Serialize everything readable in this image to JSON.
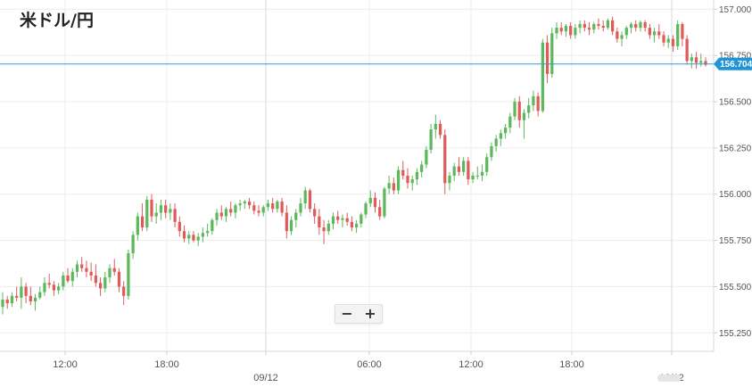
{
  "chart_data": {
    "type": "candlestick",
    "title": "米ドル/円",
    "ylim": [
      155.15,
      157.05
    ],
    "yticks": [
      "157.000",
      "156.750",
      "156.500",
      "156.250",
      "156.000",
      "155.750",
      "155.500",
      "155.250"
    ],
    "ytick_values": [
      157.0,
      156.75,
      156.5,
      156.25,
      156.0,
      155.75,
      155.5,
      155.25
    ],
    "xticks": [
      "12:00",
      "18:00",
      "09/12",
      "06:00",
      "12:00",
      "18:00",
      "10/12"
    ],
    "date_separators": [
      "09/12",
      "10/12"
    ],
    "current_price": "156.704",
    "current_price_value": 156.704,
    "colors": {
      "up": "#5cb85c",
      "down": "#e05a5a",
      "price_line": "#2a9fd6",
      "badge": "#1f95d8"
    },
    "candles": [
      [
        155.39,
        155.47,
        155.35,
        155.43
      ],
      [
        155.43,
        155.45,
        155.38,
        155.41
      ],
      [
        155.41,
        155.47,
        155.39,
        155.45
      ],
      [
        155.45,
        155.5,
        155.42,
        155.44
      ],
      [
        155.44,
        155.55,
        155.38,
        155.5
      ],
      [
        155.5,
        155.52,
        155.41,
        155.45
      ],
      [
        155.45,
        155.5,
        155.4,
        155.42
      ],
      [
        155.42,
        155.46,
        155.37,
        155.44
      ],
      [
        155.44,
        155.5,
        155.43,
        155.47
      ],
      [
        155.47,
        155.55,
        155.45,
        155.52
      ],
      [
        155.52,
        155.57,
        155.49,
        155.51
      ],
      [
        155.51,
        155.53,
        155.45,
        155.48
      ],
      [
        155.48,
        155.52,
        155.46,
        155.5
      ],
      [
        155.5,
        155.58,
        155.48,
        155.56
      ],
      [
        155.56,
        155.6,
        155.52,
        155.53
      ],
      [
        155.53,
        155.6,
        155.5,
        155.58
      ],
      [
        155.58,
        155.64,
        155.55,
        155.62
      ],
      [
        155.62,
        155.66,
        155.58,
        155.6
      ],
      [
        155.6,
        155.64,
        155.55,
        155.58
      ],
      [
        155.58,
        155.63,
        155.53,
        155.56
      ],
      [
        155.56,
        155.62,
        155.5,
        155.52
      ],
      [
        155.52,
        155.55,
        155.45,
        155.49
      ],
      [
        155.49,
        155.58,
        155.47,
        155.55
      ],
      [
        155.55,
        155.62,
        155.52,
        155.6
      ],
      [
        155.6,
        155.65,
        155.56,
        155.58
      ],
      [
        155.58,
        155.6,
        155.47,
        155.5
      ],
      [
        155.5,
        155.53,
        155.4,
        155.45
      ],
      [
        155.45,
        155.7,
        155.43,
        155.68
      ],
      [
        155.68,
        155.8,
        155.65,
        155.78
      ],
      [
        155.78,
        155.9,
        155.75,
        155.88
      ],
      [
        155.88,
        155.95,
        155.8,
        155.82
      ],
      [
        155.82,
        155.99,
        155.8,
        155.97
      ],
      [
        155.97,
        156.0,
        155.85,
        155.88
      ],
      [
        155.88,
        155.95,
        155.84,
        155.9
      ],
      [
        155.9,
        155.97,
        155.86,
        155.94
      ],
      [
        155.94,
        155.97,
        155.87,
        155.9
      ],
      [
        155.9,
        155.95,
        155.86,
        155.92
      ],
      [
        155.92,
        155.95,
        155.82,
        155.85
      ],
      [
        155.85,
        155.88,
        155.77,
        155.8
      ],
      [
        155.8,
        155.83,
        155.74,
        155.76
      ],
      [
        155.76,
        155.8,
        155.73,
        155.78
      ],
      [
        155.78,
        155.8,
        155.74,
        155.75
      ],
      [
        155.75,
        155.79,
        155.72,
        155.77
      ],
      [
        155.77,
        155.82,
        155.74,
        155.79
      ],
      [
        155.79,
        155.84,
        155.77,
        155.8
      ],
      [
        155.8,
        155.87,
        155.78,
        155.86
      ],
      [
        155.86,
        155.92,
        155.83,
        155.9
      ],
      [
        155.9,
        155.94,
        155.86,
        155.88
      ],
      [
        155.88,
        155.93,
        155.85,
        155.92
      ],
      [
        155.92,
        155.96,
        155.88,
        155.9
      ],
      [
        155.9,
        155.95,
        155.87,
        155.94
      ],
      [
        155.94,
        155.97,
        155.91,
        155.95
      ],
      [
        155.95,
        155.97,
        155.92,
        155.96
      ],
      [
        155.96,
        155.98,
        155.92,
        155.94
      ],
      [
        155.94,
        155.96,
        155.89,
        155.91
      ],
      [
        155.91,
        155.94,
        155.88,
        155.9
      ],
      [
        155.9,
        155.94,
        155.88,
        155.93
      ],
      [
        155.93,
        155.97,
        155.91,
        155.95
      ],
      [
        155.95,
        155.98,
        155.9,
        155.92
      ],
      [
        155.92,
        155.97,
        155.9,
        155.96
      ],
      [
        155.96,
        155.98,
        155.88,
        155.9
      ],
      [
        155.9,
        155.94,
        155.76,
        155.8
      ],
      [
        155.8,
        155.88,
        155.78,
        155.86
      ],
      [
        155.86,
        155.92,
        155.82,
        155.9
      ],
      [
        155.9,
        155.98,
        155.88,
        155.95
      ],
      [
        155.95,
        156.04,
        155.92,
        156.02
      ],
      [
        156.02,
        156.03,
        155.9,
        155.92
      ],
      [
        155.92,
        155.95,
        155.84,
        155.88
      ],
      [
        155.88,
        155.92,
        155.78,
        155.82
      ],
      [
        155.82,
        155.86,
        155.73,
        155.8
      ],
      [
        155.8,
        155.86,
        155.78,
        155.84
      ],
      [
        155.84,
        155.9,
        155.81,
        155.88
      ],
      [
        155.88,
        155.91,
        155.84,
        155.86
      ],
      [
        155.86,
        155.89,
        155.82,
        155.87
      ],
      [
        155.87,
        155.9,
        155.83,
        155.85
      ],
      [
        155.85,
        155.88,
        155.8,
        155.82
      ],
      [
        155.82,
        155.86,
        155.79,
        155.84
      ],
      [
        155.84,
        155.9,
        155.82,
        155.89
      ],
      [
        155.89,
        155.96,
        155.87,
        155.95
      ],
      [
        155.95,
        156.02,
        155.93,
        155.98
      ],
      [
        155.98,
        156.01,
        155.9,
        155.93
      ],
      [
        155.93,
        155.97,
        155.86,
        155.88
      ],
      [
        155.88,
        156.04,
        155.87,
        156.03
      ],
      [
        156.03,
        156.1,
        156.0,
        156.06
      ],
      [
        156.06,
        156.09,
        156.0,
        156.02
      ],
      [
        156.02,
        156.15,
        156.0,
        156.13
      ],
      [
        156.13,
        156.18,
        156.08,
        156.1
      ],
      [
        156.1,
        156.14,
        156.03,
        156.06
      ],
      [
        156.06,
        156.1,
        156.02,
        156.08
      ],
      [
        156.08,
        156.14,
        156.05,
        156.12
      ],
      [
        156.12,
        156.18,
        156.09,
        156.16
      ],
      [
        156.16,
        156.26,
        156.14,
        156.24
      ],
      [
        156.24,
        156.38,
        156.22,
        156.35
      ],
      [
        156.35,
        156.43,
        156.3,
        156.38
      ],
      [
        156.38,
        156.4,
        156.3,
        156.32
      ],
      [
        156.32,
        156.35,
        156.0,
        156.06
      ],
      [
        156.06,
        156.12,
        156.02,
        156.1
      ],
      [
        156.1,
        156.17,
        156.07,
        156.15
      ],
      [
        156.15,
        156.2,
        156.1,
        156.12
      ],
      [
        156.12,
        156.2,
        156.1,
        156.18
      ],
      [
        156.18,
        156.2,
        156.05,
        156.08
      ],
      [
        156.08,
        156.12,
        156.06,
        156.1
      ],
      [
        156.1,
        156.15,
        156.08,
        156.1
      ],
      [
        156.1,
        156.16,
        156.07,
        156.12
      ],
      [
        156.12,
        156.22,
        156.1,
        156.2
      ],
      [
        156.2,
        156.28,
        156.18,
        156.26
      ],
      [
        156.26,
        156.32,
        156.23,
        156.3
      ],
      [
        156.3,
        156.35,
        156.26,
        156.33
      ],
      [
        156.33,
        156.38,
        156.3,
        156.36
      ],
      [
        156.36,
        156.44,
        156.33,
        156.42
      ],
      [
        156.42,
        156.52,
        156.4,
        156.5
      ],
      [
        156.5,
        156.53,
        156.36,
        156.4
      ],
      [
        156.4,
        156.46,
        156.3,
        156.44
      ],
      [
        156.44,
        156.52,
        156.41,
        156.48
      ],
      [
        156.48,
        156.56,
        156.45,
        156.53
      ],
      [
        156.53,
        156.55,
        156.42,
        156.45
      ],
      [
        156.45,
        156.84,
        156.44,
        156.82
      ],
      [
        156.82,
        156.86,
        156.6,
        156.65
      ],
      [
        156.65,
        156.9,
        156.63,
        156.87
      ],
      [
        156.87,
        156.93,
        156.84,
        156.9
      ],
      [
        156.9,
        156.93,
        156.86,
        156.88
      ],
      [
        156.88,
        156.92,
        156.85,
        156.91
      ],
      [
        156.91,
        156.93,
        156.84,
        156.86
      ],
      [
        156.86,
        156.92,
        156.84,
        156.9
      ],
      [
        156.9,
        156.94,
        156.87,
        156.92
      ],
      [
        156.92,
        156.94,
        156.88,
        156.9
      ],
      [
        156.9,
        156.93,
        156.86,
        156.89
      ],
      [
        156.89,
        156.93,
        156.87,
        156.92
      ],
      [
        156.92,
        156.95,
        156.89,
        156.91
      ],
      [
        156.91,
        156.94,
        156.88,
        156.9
      ],
      [
        156.9,
        156.95,
        156.89,
        156.94
      ],
      [
        156.94,
        156.96,
        156.86,
        156.88
      ],
      [
        156.88,
        156.9,
        156.82,
        156.84
      ],
      [
        156.84,
        156.88,
        156.8,
        156.86
      ],
      [
        156.86,
        156.91,
        156.84,
        156.9
      ],
      [
        156.9,
        156.93,
        156.87,
        156.92
      ],
      [
        156.92,
        156.94,
        156.88,
        156.9
      ],
      [
        156.9,
        156.94,
        156.88,
        156.93
      ],
      [
        156.93,
        156.94,
        156.88,
        156.9
      ],
      [
        156.9,
        156.92,
        156.84,
        156.86
      ],
      [
        156.86,
        156.9,
        156.82,
        156.88
      ],
      [
        156.88,
        156.92,
        156.84,
        156.86
      ],
      [
        156.86,
        156.88,
        156.8,
        156.82
      ],
      [
        156.82,
        156.86,
        156.79,
        156.84
      ],
      [
        156.84,
        156.86,
        156.77,
        156.8
      ],
      [
        156.8,
        156.94,
        156.78,
        156.92
      ],
      [
        156.92,
        156.93,
        156.8,
        156.84
      ],
      [
        156.84,
        156.86,
        156.7,
        156.72
      ],
      [
        156.72,
        156.76,
        156.68,
        156.74
      ],
      [
        156.74,
        156.77,
        156.68,
        156.71
      ],
      [
        156.71,
        156.76,
        156.69,
        156.72
      ],
      [
        156.72,
        156.74,
        156.69,
        156.7
      ]
    ]
  }
}
